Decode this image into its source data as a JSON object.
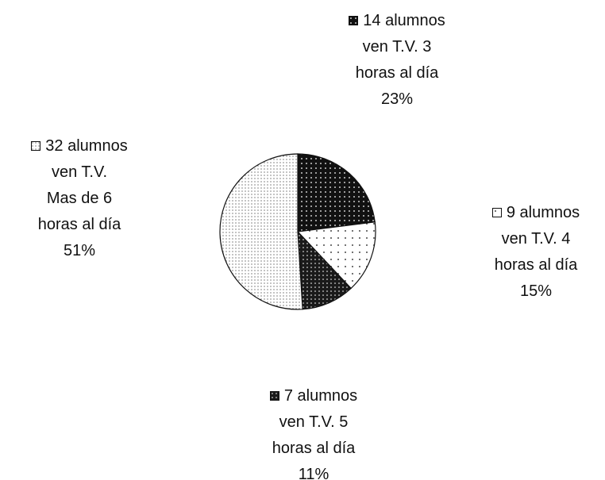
{
  "chart_data": {
    "type": "pie",
    "categories": [
      "14 alumnos\nven T.V. 3\nhoras al día",
      "9 alumnos\nven T.V. 4\nhoras al día",
      "7 alumnos\nven T.V. 5\nhoras al día",
      "32 alumnos\nven T.V.\nMas de 6\nhoras al día"
    ],
    "values": [
      23,
      15,
      11,
      51
    ],
    "value_labels": [
      "23%",
      "15%",
      "11%",
      "51%"
    ]
  }
}
